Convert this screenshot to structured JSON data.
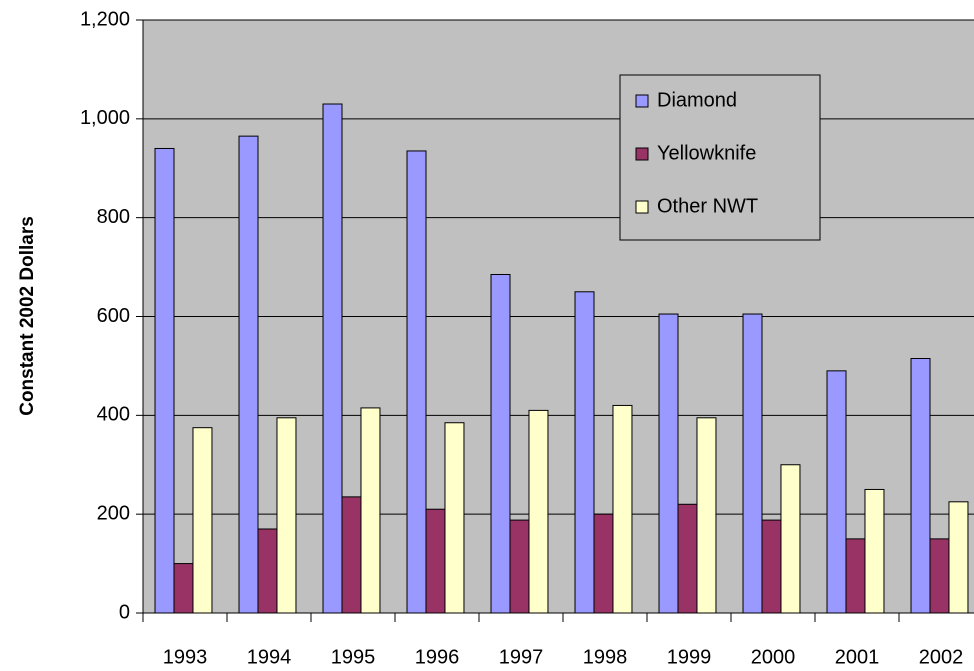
{
  "chart_data": {
    "type": "bar",
    "y_label": "Constant 2002 Dollars",
    "categories": [
      "1993",
      "1994",
      "1995",
      "1996",
      "1997",
      "1998",
      "1999",
      "2000",
      "2001",
      "2002"
    ],
    "series": [
      {
        "name": "Diamond",
        "color": "#9999ff",
        "values": [
          940,
          965,
          1030,
          935,
          685,
          650,
          605,
          605,
          490,
          515
        ]
      },
      {
        "name": "Yellowknife",
        "color": "#993366",
        "values": [
          100,
          170,
          235,
          210,
          188,
          200,
          220,
          188,
          150,
          150
        ]
      },
      {
        "name": "Other NWT",
        "color": "#ffffcc",
        "values": [
          375,
          395,
          415,
          385,
          410,
          420,
          395,
          300,
          250,
          225
        ]
      }
    ],
    "ylim": [
      0,
      1200
    ],
    "yticks": [
      0,
      200,
      400,
      600,
      800,
      {
        "value": 1000,
        "label": "1,000"
      },
      {
        "value": 1200,
        "label": "1,200"
      }
    ],
    "grid": true
  }
}
